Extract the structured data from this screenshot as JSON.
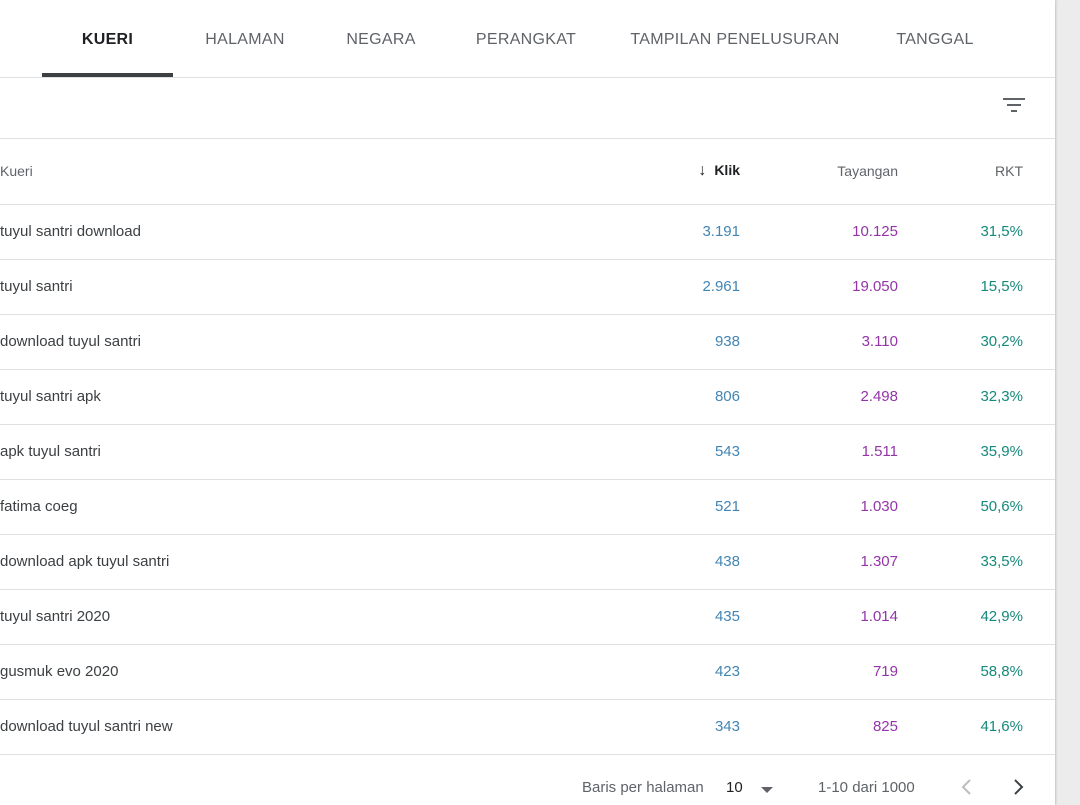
{
  "tabs": [
    {
      "label": "KUERI",
      "active": true
    },
    {
      "label": "HALAMAN",
      "active": false
    },
    {
      "label": "NEGARA",
      "active": false
    },
    {
      "label": "PERANGKAT",
      "active": false
    },
    {
      "label": "TAMPILAN PENELUSURAN",
      "active": false
    },
    {
      "label": "TANGGAL",
      "active": false
    }
  ],
  "table": {
    "headers": {
      "query": "Kueri",
      "clicks": "Klik",
      "impressions": "Tayangan",
      "ctr": "RKT"
    },
    "sort_icon": "arrow-down-icon",
    "rows": [
      {
        "query": "tuyul santri download",
        "clicks": "3.191",
        "impressions": "10.125",
        "ctr": "31,5%"
      },
      {
        "query": "tuyul santri",
        "clicks": "2.961",
        "impressions": "19.050",
        "ctr": "15,5%"
      },
      {
        "query": "download tuyul santri",
        "clicks": "938",
        "impressions": "3.110",
        "ctr": "30,2%"
      },
      {
        "query": "tuyul santri apk",
        "clicks": "806",
        "impressions": "2.498",
        "ctr": "32,3%"
      },
      {
        "query": "apk tuyul santri",
        "clicks": "543",
        "impressions": "1.511",
        "ctr": "35,9%"
      },
      {
        "query": "fatima coeg",
        "clicks": "521",
        "impressions": "1.030",
        "ctr": "50,6%"
      },
      {
        "query": "download apk tuyul santri",
        "clicks": "438",
        "impressions": "1.307",
        "ctr": "33,5%"
      },
      {
        "query": "tuyul santri 2020",
        "clicks": "435",
        "impressions": "1.014",
        "ctr": "42,9%"
      },
      {
        "query": "gusmuk evo 2020",
        "clicks": "423",
        "impressions": "719",
        "ctr": "58,8%"
      },
      {
        "query": "download tuyul santri new",
        "clicks": "343",
        "impressions": "825",
        "ctr": "41,6%"
      }
    ]
  },
  "pagination": {
    "rows_per_page_label": "Baris per halaman",
    "rows_per_page_value": "10",
    "range_text": "1-10 dari 1000"
  },
  "colors": {
    "clicks": "#4285b4",
    "impressions": "#9334a8",
    "ctr": "#16897a"
  }
}
